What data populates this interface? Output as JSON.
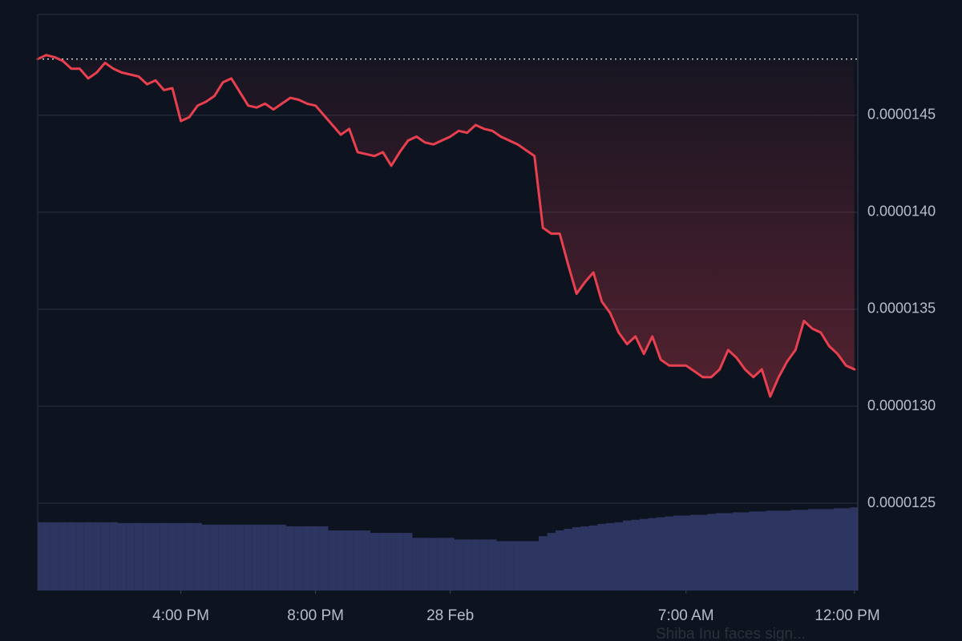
{
  "chart_data": {
    "type": "line",
    "x": [
      "27 Feb 11:45",
      "27 Feb 12:00",
      "27 Feb 12:15",
      "27 Feb 12:30",
      "27 Feb 12:45",
      "27 Feb 13:00",
      "27 Feb 13:15",
      "27 Feb 13:30",
      "27 Feb 13:45",
      "27 Feb 14:00",
      "27 Feb 14:15",
      "27 Feb 14:30",
      "27 Feb 14:45",
      "27 Feb 15:00",
      "27 Feb 15:15",
      "27 Feb 15:30",
      "27 Feb 15:45",
      "27 Feb 16:00",
      "27 Feb 16:15",
      "27 Feb 16:30",
      "27 Feb 16:45",
      "27 Feb 17:00",
      "27 Feb 17:15",
      "27 Feb 17:30",
      "27 Feb 17:45",
      "27 Feb 18:00",
      "27 Feb 18:15",
      "27 Feb 18:30",
      "27 Feb 18:45",
      "27 Feb 19:00",
      "27 Feb 19:15",
      "27 Feb 19:30",
      "27 Feb 19:45",
      "27 Feb 20:00",
      "27 Feb 20:15",
      "27 Feb 20:30",
      "27 Feb 20:45",
      "27 Feb 21:00",
      "27 Feb 21:15",
      "27 Feb 21:30",
      "27 Feb 21:45",
      "27 Feb 22:00",
      "27 Feb 22:15",
      "27 Feb 22:30",
      "27 Feb 22:45",
      "27 Feb 23:00",
      "27 Feb 23:15",
      "27 Feb 23:30",
      "27 Feb 23:45",
      "28 Feb 00:00",
      "28 Feb 00:15",
      "28 Feb 00:30",
      "28 Feb 00:45",
      "28 Feb 01:00",
      "28 Feb 01:15",
      "28 Feb 01:30",
      "28 Feb 01:45",
      "28 Feb 02:00",
      "28 Feb 02:15",
      "28 Feb 02:30",
      "28 Feb 02:45",
      "28 Feb 03:00",
      "28 Feb 03:15",
      "28 Feb 03:30",
      "28 Feb 03:45",
      "28 Feb 04:00",
      "28 Feb 04:15",
      "28 Feb 04:30",
      "28 Feb 04:45",
      "28 Feb 05:00",
      "28 Feb 05:15",
      "28 Feb 05:30",
      "28 Feb 05:45",
      "28 Feb 06:00",
      "28 Feb 06:15",
      "28 Feb 06:30",
      "28 Feb 06:45",
      "28 Feb 07:00",
      "28 Feb 07:15",
      "28 Feb 07:30",
      "28 Feb 07:45",
      "28 Feb 08:00",
      "28 Feb 08:15",
      "28 Feb 08:30",
      "28 Feb 08:45",
      "28 Feb 09:00",
      "28 Feb 09:15",
      "28 Feb 09:30",
      "28 Feb 09:45",
      "28 Feb 10:00",
      "28 Feb 10:15",
      "28 Feb 10:30",
      "28 Feb 10:45",
      "28 Feb 11:00",
      "28 Feb 11:15",
      "28 Feb 11:30",
      "28 Feb 11:45",
      "28 Feb 12:00"
    ],
    "series": [
      {
        "color": "#e8404f",
        "values": [
          1.479e-05,
          1.481e-05,
          1.48e-05,
          1.478e-05,
          1.474e-05,
          1.474e-05,
          1.469e-05,
          1.472e-05,
          1.477e-05,
          1.474e-05,
          1.472e-05,
          1.471e-05,
          1.47e-05,
          1.466e-05,
          1.468e-05,
          1.463e-05,
          1.464e-05,
          1.447e-05,
          1.449e-05,
          1.455e-05,
          1.457e-05,
          1.46e-05,
          1.467e-05,
          1.469e-05,
          1.462e-05,
          1.455e-05,
          1.454e-05,
          1.456e-05,
          1.453e-05,
          1.456e-05,
          1.459e-05,
          1.458e-05,
          1.456e-05,
          1.455e-05,
          1.45e-05,
          1.445e-05,
          1.44e-05,
          1.443e-05,
          1.431e-05,
          1.43e-05,
          1.429e-05,
          1.431e-05,
          1.424e-05,
          1.431e-05,
          1.437e-05,
          1.439e-05,
          1.436e-05,
          1.435e-05,
          1.437e-05,
          1.439e-05,
          1.442e-05,
          1.441e-05,
          1.445e-05,
          1.443e-05,
          1.442e-05,
          1.439e-05,
          1.437e-05,
          1.435e-05,
          1.432e-05,
          1.429e-05,
          1.392e-05,
          1.389e-05,
          1.389e-05,
          1.373e-05,
          1.358e-05,
          1.364e-05,
          1.369e-05,
          1.354e-05,
          1.348e-05,
          1.338e-05,
          1.332e-05,
          1.336e-05,
          1.327e-05,
          1.336e-05,
          1.324e-05,
          1.321e-05,
          1.321e-05,
          1.321e-05,
          1.318e-05,
          1.315e-05,
          1.315e-05,
          1.319e-05,
          1.329e-05,
          1.325e-05,
          1.319e-05,
          1.315e-05,
          1.319e-05,
          1.305e-05,
          1.315e-05,
          1.323e-05,
          1.329e-05,
          1.344e-05,
          1.34e-05,
          1.338e-05,
          1.331e-05,
          1.327e-05,
          1.321e-05,
          1.319e-05
        ]
      },
      {
        "color": "#2d3661",
        "axis": "y2",
        "values": [
          83,
          83,
          83,
          83,
          83,
          83,
          83,
          83,
          83,
          83,
          82,
          82,
          82,
          82,
          82,
          82,
          82,
          82,
          82,
          82,
          80,
          80,
          80,
          80,
          80,
          80,
          80,
          80,
          80,
          80,
          78,
          78,
          78,
          78,
          78,
          73,
          73,
          73,
          73,
          73,
          70,
          70,
          70,
          70,
          70,
          64,
          64,
          64,
          64,
          64,
          62,
          62,
          62,
          62,
          62,
          60,
          60,
          60,
          60,
          60,
          66,
          70,
          73,
          75,
          77,
          78,
          79,
          81,
          82,
          83,
          85,
          86,
          87,
          88,
          89,
          90,
          91,
          91,
          92,
          92,
          93,
          94,
          94,
          95,
          95,
          96,
          96,
          97,
          97,
          97,
          98,
          98,
          99,
          99,
          99,
          100,
          100,
          101
        ]
      }
    ],
    "xlim": [
      "27 Feb 11:45",
      "28 Feb 12:06"
    ],
    "xticks": [
      {
        "value": "27 Feb 16:00",
        "label": "4:00 PM"
      },
      {
        "value": "27 Feb 20:00",
        "label": "8:00 PM"
      },
      {
        "value": "28 Feb 00:00",
        "label": "28 Feb"
      },
      {
        "value": "28 Feb 07:00",
        "label": "7:00 AM"
      },
      {
        "value": "28 Feb 12:00",
        "label": "12:00 PM"
      }
    ],
    "ylim": [
      1.205e-05,
      1.502e-05
    ],
    "yticks": [
      {
        "value": 1.25e-05,
        "label": "0.0000125"
      },
      {
        "value": 1.3e-05,
        "label": "0.0000130"
      },
      {
        "value": 1.35e-05,
        "label": "0.0000135"
      },
      {
        "value": 1.4e-05,
        "label": "0.0000140"
      },
      {
        "value": 1.45e-05,
        "label": "0.0000145"
      }
    ],
    "y2lim": [
      0,
      700
    ],
    "grid": true,
    "reference_line": true,
    "overlay_text": "Shiba Inu faces sign..."
  }
}
